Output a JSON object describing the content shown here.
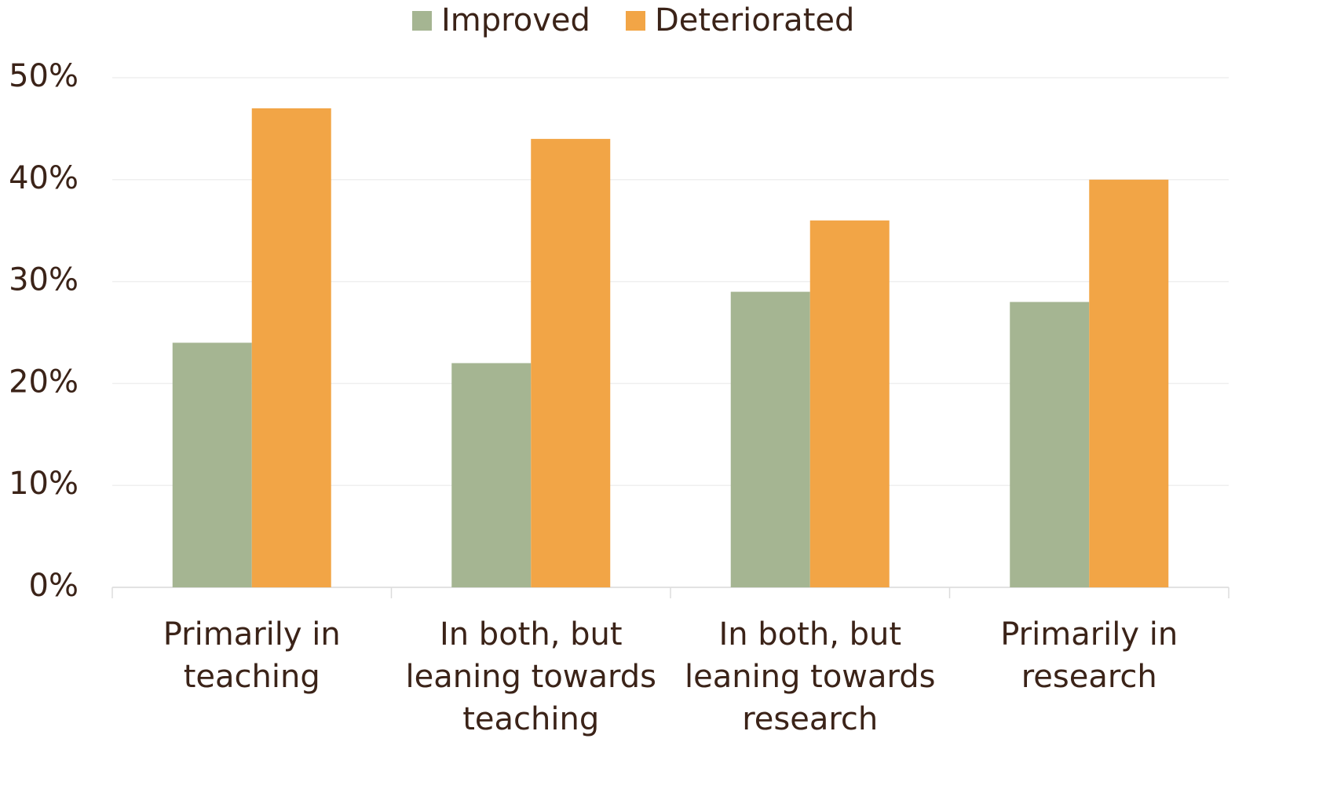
{
  "chart_data": {
    "type": "bar",
    "categories": [
      "Primarily in teaching",
      "In both, but leaning towards teaching",
      "In both, but leaning towards research",
      "Primarily in research"
    ],
    "series": [
      {
        "name": "Improved",
        "color": "#a5b592",
        "values": [
          24,
          22,
          29,
          28
        ]
      },
      {
        "name": "Deteriorated",
        "color": "#f2a546",
        "values": [
          47,
          44,
          36,
          40
        ]
      }
    ],
    "ylim": [
      0,
      50
    ],
    "yticks": [
      {
        "value": 0,
        "label": "0%"
      },
      {
        "value": 10,
        "label": "10%"
      },
      {
        "value": 20,
        "label": "20%"
      },
      {
        "value": 30,
        "label": "30%"
      },
      {
        "value": 40,
        "label": "40%"
      },
      {
        "value": 50,
        "label": "50%"
      }
    ],
    "grid": true,
    "legend": "top"
  }
}
